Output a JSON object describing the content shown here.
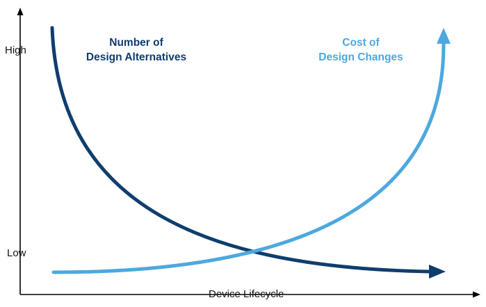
{
  "axes": {
    "y_high_label": "High",
    "y_low_label": "Low",
    "x_label": "Device Lifecycle"
  },
  "curves": [
    {
      "label_line1": "Number of",
      "label_line2": "Design Alternatives",
      "color": "#0f3d6e",
      "trend": "decreasing"
    },
    {
      "label_line1": "Cost of",
      "label_line2": "Design Changes",
      "color": "#4da8df",
      "trend": "increasing"
    }
  ],
  "colors": {
    "axis": "#000000",
    "dark_curve": "#0f3d6e",
    "light_curve": "#4da8df"
  }
}
